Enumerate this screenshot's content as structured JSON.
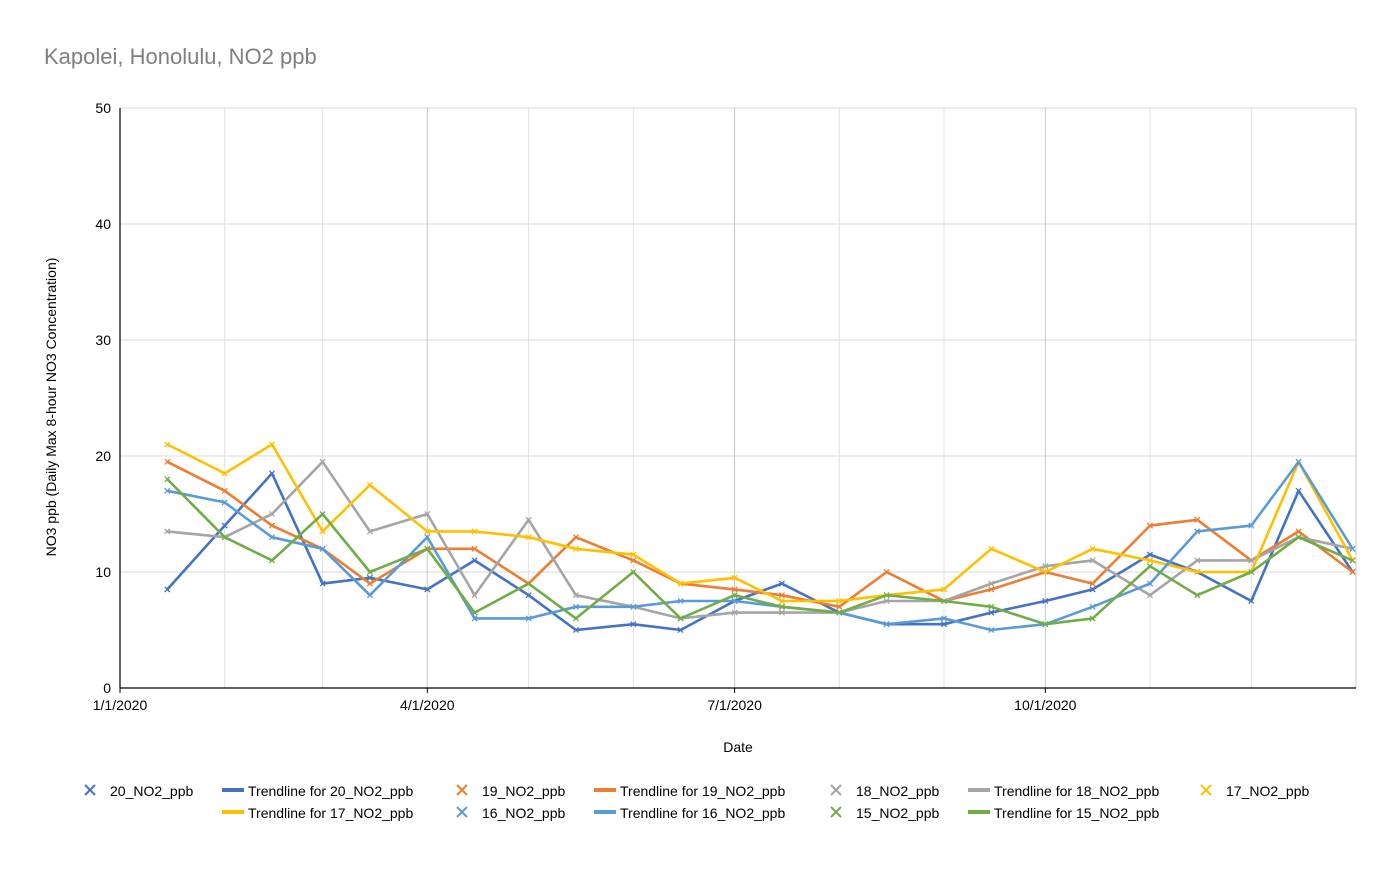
{
  "chart_data": {
    "type": "scatter",
    "title": "Kapolei, Honolulu, NO2 ppb",
    "xlabel": "Date",
    "ylabel": "NO3 ppb (Daily Max 8-hour NO3 Concentration)",
    "ylim": [
      0,
      50
    ],
    "y_ticks": [
      "0",
      "10",
      "20",
      "30",
      "40",
      "50"
    ],
    "x_range": [
      "2020-01-01",
      "2021-01-01"
    ],
    "x_ticks": [
      "1/1/2020",
      "4/1/2020",
      "7/1/2020",
      "10/1/2020"
    ],
    "grid": true,
    "legend_position": "bottom",
    "legend": [
      "20_NO2_ppb",
      "Trendline for 20_NO2_ppb",
      "19_NO2_ppb",
      "Trendline for 19_NO2_ppb",
      "18_NO2_ppb",
      "Trendline for 18_NO2_ppb",
      "17_NO2_ppb",
      "Trendline for 17_NO2_ppb",
      "16_NO2_ppb",
      "Trendline for 16_NO2_ppb",
      "15_NO2_ppb",
      "Trendline for 15_NO2_ppb"
    ],
    "series": [
      {
        "name": "20_NO2_ppb",
        "color": "#4472C4",
        "marker": "x",
        "trendline": "Trendline for 20_NO2_ppb",
        "x": [
          "2020-01-15",
          "2020-02-01",
          "2020-02-15",
          "2020-03-01",
          "2020-03-15",
          "2020-04-01",
          "2020-04-15",
          "2020-05-01",
          "2020-05-15",
          "2020-06-01",
          "2020-06-15",
          "2020-07-01",
          "2020-07-15",
          "2020-08-01",
          "2020-08-15",
          "2020-09-01",
          "2020-09-15",
          "2020-10-01",
          "2020-10-15",
          "2020-11-01",
          "2020-11-15",
          "2020-12-01",
          "2020-12-15",
          "2020-12-31"
        ],
        "y": [
          8.5,
          14,
          18.5,
          9,
          9.5,
          8.5,
          11,
          8,
          5,
          5.5,
          5,
          7.5,
          9,
          6.5,
          5.5,
          5.5,
          6.5,
          7.5,
          8.5,
          11.5,
          10,
          7.5,
          17,
          10
        ]
      },
      {
        "name": "19_NO2_ppb",
        "color": "#ED7D31",
        "marker": "x",
        "trendline": "Trendline for 19_NO2_ppb",
        "x": [
          "2020-01-15",
          "2020-02-01",
          "2020-02-15",
          "2020-03-01",
          "2020-03-15",
          "2020-04-01",
          "2020-04-15",
          "2020-05-01",
          "2020-05-15",
          "2020-06-01",
          "2020-06-15",
          "2020-07-01",
          "2020-07-15",
          "2020-08-01",
          "2020-08-15",
          "2020-09-01",
          "2020-09-15",
          "2020-10-01",
          "2020-10-15",
          "2020-11-01",
          "2020-11-15",
          "2020-12-01",
          "2020-12-15",
          "2020-12-31"
        ],
        "y": [
          19.5,
          17,
          14,
          12,
          9,
          12,
          12,
          9,
          13,
          11,
          9,
          8.5,
          8,
          7,
          10,
          7.5,
          8.5,
          10,
          9,
          14,
          14.5,
          11,
          13.5,
          10
        ]
      },
      {
        "name": "18_NO2_ppb",
        "color": "#A5A5A5",
        "marker": "x",
        "trendline": "Trendline for 18_NO2_ppb",
        "x": [
          "2020-01-15",
          "2020-02-01",
          "2020-02-15",
          "2020-03-01",
          "2020-03-15",
          "2020-04-01",
          "2020-04-15",
          "2020-05-01",
          "2020-05-15",
          "2020-06-01",
          "2020-06-15",
          "2020-07-01",
          "2020-07-15",
          "2020-08-01",
          "2020-08-15",
          "2020-09-01",
          "2020-09-15",
          "2020-10-01",
          "2020-10-15",
          "2020-11-01",
          "2020-11-15",
          "2020-12-01",
          "2020-12-15",
          "2020-12-31"
        ],
        "y": [
          13.5,
          13,
          15,
          19.5,
          13.5,
          15,
          8,
          14.5,
          8,
          7,
          6,
          6.5,
          6.5,
          6.5,
          7.5,
          7.5,
          9,
          10.5,
          11,
          8,
          11,
          11,
          13,
          12
        ]
      },
      {
        "name": "17_NO2_ppb",
        "color": "#FFC000",
        "marker": "x",
        "trendline": "Trendline for 17_NO2_ppb",
        "x": [
          "2020-01-15",
          "2020-02-01",
          "2020-02-15",
          "2020-03-01",
          "2020-03-15",
          "2020-04-01",
          "2020-04-15",
          "2020-05-01",
          "2020-05-15",
          "2020-06-01",
          "2020-06-15",
          "2020-07-01",
          "2020-07-15",
          "2020-08-01",
          "2020-08-15",
          "2020-09-01",
          "2020-09-15",
          "2020-10-01",
          "2020-10-15",
          "2020-11-01",
          "2020-11-15",
          "2020-12-01",
          "2020-12-15",
          "2020-12-31"
        ],
        "y": [
          21,
          18.5,
          21,
          13.5,
          17.5,
          13.5,
          13.5,
          13,
          12,
          11.5,
          9,
          9.5,
          7.5,
          7.5,
          8,
          8.5,
          12,
          10,
          12,
          11,
          10,
          10,
          19.5,
          11
        ]
      },
      {
        "name": "16_NO2_ppb",
        "color": "#5B9BD5",
        "marker": "x",
        "trendline": "Trendline for 16_NO2_ppb",
        "x": [
          "2020-01-15",
          "2020-02-01",
          "2020-02-15",
          "2020-03-01",
          "2020-03-15",
          "2020-04-01",
          "2020-04-15",
          "2020-05-01",
          "2020-05-15",
          "2020-06-01",
          "2020-06-15",
          "2020-07-01",
          "2020-07-15",
          "2020-08-01",
          "2020-08-15",
          "2020-09-01",
          "2020-09-15",
          "2020-10-01",
          "2020-10-15",
          "2020-11-01",
          "2020-11-15",
          "2020-12-01",
          "2020-12-15",
          "2020-12-31"
        ],
        "y": [
          17,
          16,
          13,
          12,
          8,
          13,
          6,
          6,
          7,
          7,
          7.5,
          7.5,
          7,
          6.5,
          5.5,
          6,
          5,
          5.5,
          7,
          9,
          13.5,
          14,
          19.5,
          12
        ]
      },
      {
        "name": "15_NO2_ppb",
        "color": "#70AD47",
        "marker": "x",
        "trendline": "Trendline for 15_NO2_ppb",
        "x": [
          "2020-01-15",
          "2020-02-01",
          "2020-02-15",
          "2020-03-01",
          "2020-03-15",
          "2020-04-01",
          "2020-04-15",
          "2020-05-01",
          "2020-05-15",
          "2020-06-01",
          "2020-06-15",
          "2020-07-01",
          "2020-07-15",
          "2020-08-01",
          "2020-08-15",
          "2020-09-01",
          "2020-09-15",
          "2020-10-01",
          "2020-10-15",
          "2020-11-01",
          "2020-11-15",
          "2020-12-01",
          "2020-12-15",
          "2020-12-31"
        ],
        "y": [
          18,
          13,
          11,
          15,
          10,
          12,
          6.5,
          9,
          6,
          10,
          6,
          8,
          7,
          6.5,
          8,
          7.5,
          7,
          5.5,
          6,
          10.5,
          8,
          10,
          13,
          11
        ]
      }
    ]
  }
}
